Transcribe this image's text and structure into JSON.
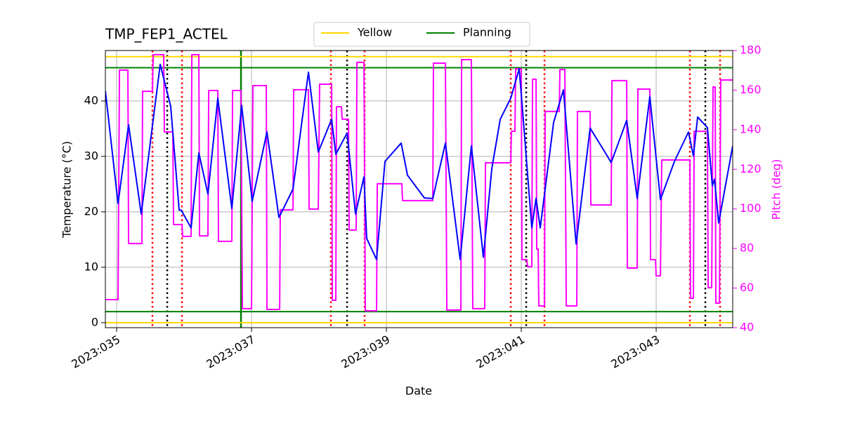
{
  "chart_data": {
    "type": "line",
    "title": "TMP_FEP1_ACTEL",
    "xlabel": "Date",
    "ylabel": "Temperature (°C)",
    "y2label": "Pitch (deg)",
    "y2color": "#ff00ff",
    "grid": true,
    "legend": "upper center",
    "xlim": [
      34.833,
      44.135
    ],
    "xticks": [
      {
        "value": 35,
        "label": "2023:035"
      },
      {
        "value": 37,
        "label": "2023:037"
      },
      {
        "value": 39,
        "label": "2023:039"
      },
      {
        "value": 41,
        "label": "2023:041"
      },
      {
        "value": 43,
        "label": "2023:043"
      }
    ],
    "ylim": [
      -0.9,
      49.1
    ],
    "yticks": [
      0,
      10,
      20,
      30,
      40
    ],
    "y2lim": [
      40,
      180
    ],
    "y2ticks": [
      40,
      60,
      80,
      100,
      120,
      140,
      160,
      180
    ],
    "limits": [
      {
        "name": "Yellow",
        "color": "#ffd700",
        "values": [
          48,
          0
        ]
      },
      {
        "name": "Planning",
        "color": "#008000",
        "values": [
          46,
          2
        ]
      }
    ],
    "vlines": [
      {
        "color": "#ff0000",
        "style": "dotted",
        "x": [
          35.531,
          35.969,
          38.177,
          38.677,
          40.844,
          41.344,
          43.5,
          43.948
        ]
      },
      {
        "color": "#000000",
        "style": "dotted",
        "x": [
          35.75,
          38.417,
          41.073,
          43.729
        ]
      },
      {
        "color": "#008000",
        "style": "solid",
        "x": [
          36.844
        ]
      }
    ],
    "series": [
      {
        "color": "#ff00ff",
        "axis": "y2",
        "step": true,
        "x": [
          34.833,
          35.021,
          35.042,
          35.167,
          35.177,
          35.375,
          35.385,
          35.531,
          35.542,
          35.698,
          35.708,
          35.833,
          35.844,
          35.969,
          35.979,
          36.104,
          36.115,
          36.219,
          36.229,
          36.354,
          36.365,
          36.5,
          36.51,
          36.708,
          36.719,
          36.844,
          36.865,
          37.0,
          37.021,
          37.219,
          37.229,
          37.417,
          37.427,
          37.615,
          37.625,
          37.844,
          37.854,
          37.99,
          38.01,
          38.188,
          38.198,
          38.25,
          38.26,
          38.333,
          38.344,
          38.438,
          38.448,
          38.552,
          38.563,
          38.667,
          38.688,
          38.854,
          38.865,
          39.229,
          39.24,
          39.688,
          39.698,
          39.875,
          39.896,
          40.104,
          40.115,
          40.26,
          40.281,
          40.458,
          40.469,
          40.844,
          40.854,
          40.906,
          40.917,
          41.0,
          41.01,
          41.083,
          41.094,
          41.156,
          41.167,
          41.219,
          41.229,
          41.25,
          41.26,
          41.344,
          41.354,
          41.563,
          41.573,
          41.646,
          41.667,
          41.823,
          41.833,
          42.021,
          42.031,
          42.333,
          42.344,
          42.563,
          42.573,
          42.719,
          42.729,
          42.906,
          42.917,
          42.99,
          43.0,
          43.063,
          43.083,
          43.5,
          43.51,
          43.552,
          43.563,
          43.76,
          43.771,
          43.823,
          43.844,
          43.875,
          43.885,
          43.938,
          43.958,
          44.135
        ],
        "values": [
          54.2,
          54.2,
          170.1,
          170.1,
          82.5,
          82.5,
          159.4,
          159.4,
          177.9,
          177.9,
          138.9,
          138.9,
          92.1,
          92.1,
          86.1,
          86.1,
          177.9,
          177.9,
          86.4,
          86.4,
          159.8,
          159.8,
          83.6,
          83.6,
          159.8,
          159.8,
          49.6,
          49.6,
          162.3,
          162.3,
          49.2,
          49.2,
          99.5,
          99.5,
          160.2,
          160.2,
          99.9,
          99.9,
          163.0,
          163.0,
          53.8,
          53.8,
          151.6,
          151.6,
          145.3,
          145.3,
          89.3,
          89.3,
          174.0,
          174.0,
          48.5,
          48.5,
          112.7,
          112.7,
          104.2,
          104.2,
          173.6,
          173.6,
          48.9,
          48.9,
          175.4,
          175.4,
          49.6,
          49.6,
          123.3,
          123.3,
          139.2,
          139.2,
          170.8,
          170.8,
          74.4,
          74.4,
          70.8,
          70.8,
          165.5,
          165.5,
          79.7,
          79.7,
          51.0,
          51.0,
          149.2,
          149.2,
          170.4,
          170.4,
          51.0,
          51.0,
          149.2,
          149.2,
          102.0,
          102.0,
          164.8,
          164.8,
          70.1,
          70.1,
          160.5,
          160.5,
          74.4,
          74.4,
          66.2,
          66.2,
          124.7,
          124.7,
          54.9,
          54.9,
          139.2,
          139.2,
          60.2,
          60.2,
          161.6,
          161.6,
          52.4,
          52.4,
          165.1,
          165.1
        ]
      },
      {
        "color": "#0000ff",
        "axis": "y",
        "x": [
          34.833,
          35.021,
          35.177,
          35.365,
          35.646,
          35.802,
          35.927,
          35.958,
          36.104,
          36.219,
          36.354,
          36.5,
          36.708,
          36.854,
          37.01,
          37.229,
          37.406,
          37.469,
          37.615,
          37.844,
          37.99,
          38.188,
          38.25,
          38.417,
          38.542,
          38.667,
          38.708,
          38.854,
          38.979,
          39.219,
          39.313,
          39.563,
          39.688,
          39.875,
          40.094,
          40.26,
          40.438,
          40.563,
          40.688,
          40.844,
          40.969,
          41.021,
          41.156,
          41.219,
          41.281,
          41.479,
          41.625,
          41.813,
          42.021,
          42.229,
          42.333,
          42.563,
          42.719,
          42.906,
          43.063,
          43.271,
          43.479,
          43.552,
          43.615,
          43.76,
          43.833,
          43.865,
          43.927,
          44.135
        ],
        "values": [
          41.8,
          21.5,
          35.7,
          19.6,
          46.6,
          39.0,
          20.3,
          20.3,
          17.1,
          30.6,
          23.2,
          40.5,
          20.6,
          39.2,
          21.9,
          34.4,
          19.0,
          20.5,
          24.1,
          45.2,
          30.8,
          36.7,
          30.4,
          34.2,
          19.6,
          26.3,
          15.2,
          11.4,
          29.1,
          32.4,
          26.6,
          22.5,
          22.4,
          32.4,
          11.4,
          31.9,
          11.8,
          27.8,
          36.7,
          40.5,
          45.8,
          38.0,
          17.1,
          22.4,
          17.1,
          36.1,
          42.0,
          14.2,
          35.1,
          31.0,
          28.9,
          36.5,
          22.4,
          40.8,
          22.2,
          29.1,
          34.4,
          30.1,
          37.1,
          35.2,
          24.7,
          25.9,
          18.0,
          31.9
        ]
      }
    ]
  }
}
